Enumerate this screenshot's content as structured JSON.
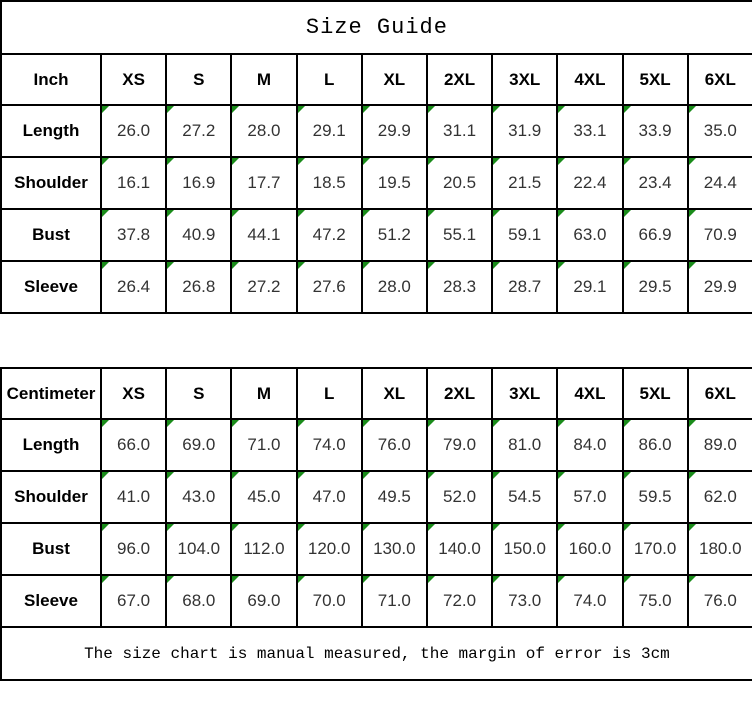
{
  "title": "Size Guide",
  "note": "The size chart is manual measured, the margin of error is 3cm",
  "colors": {
    "border": "#000000",
    "background": "#ffffff",
    "label_text": "#000000",
    "number_text": "#333333",
    "flag_triangle_green": "#1a8c1a"
  },
  "icons": {
    "cell_flag": "green-corner-triangle"
  },
  "tables": [
    {
      "unit_label": "Inch",
      "size_headers": [
        "XS",
        "S",
        "M",
        "L",
        "XL",
        "2XL",
        "3XL",
        "4XL",
        "5XL",
        "6XL"
      ],
      "rows": [
        {
          "label": "Length",
          "values": [
            "26.0",
            "27.2",
            "28.0",
            "29.1",
            "29.9",
            "31.1",
            "31.9",
            "33.1",
            "33.9",
            "35.0"
          ]
        },
        {
          "label": "Shoulder",
          "values": [
            "16.1",
            "16.9",
            "17.7",
            "18.5",
            "19.5",
            "20.5",
            "21.5",
            "22.4",
            "23.4",
            "24.4"
          ]
        },
        {
          "label": "Bust",
          "values": [
            "37.8",
            "40.9",
            "44.1",
            "47.2",
            "51.2",
            "55.1",
            "59.1",
            "63.0",
            "66.9",
            "70.9"
          ]
        },
        {
          "label": "Sleeve",
          "values": [
            "26.4",
            "26.8",
            "27.2",
            "27.6",
            "28.0",
            "28.3",
            "28.7",
            "29.1",
            "29.5",
            "29.9"
          ]
        }
      ]
    },
    {
      "unit_label": "Centimeter",
      "size_headers": [
        "XS",
        "S",
        "M",
        "L",
        "XL",
        "2XL",
        "3XL",
        "4XL",
        "5XL",
        "6XL"
      ],
      "rows": [
        {
          "label": "Length",
          "values": [
            "66.0",
            "69.0",
            "71.0",
            "74.0",
            "76.0",
            "79.0",
            "81.0",
            "84.0",
            "86.0",
            "89.0"
          ]
        },
        {
          "label": "Shoulder",
          "values": [
            "41.0",
            "43.0",
            "45.0",
            "47.0",
            "49.5",
            "52.0",
            "54.5",
            "57.0",
            "59.5",
            "62.0"
          ]
        },
        {
          "label": "Bust",
          "values": [
            "96.0",
            "104.0",
            "112.0",
            "120.0",
            "130.0",
            "140.0",
            "150.0",
            "160.0",
            "170.0",
            "180.0"
          ]
        },
        {
          "label": "Sleeve",
          "values": [
            "67.0",
            "68.0",
            "69.0",
            "70.0",
            "71.0",
            "72.0",
            "73.0",
            "74.0",
            "75.0",
            "76.0"
          ]
        }
      ]
    }
  ],
  "chart_data": [
    {
      "type": "table",
      "title": "Size Guide",
      "unit": "Inch",
      "columns": [
        "Inch",
        "XS",
        "S",
        "M",
        "L",
        "XL",
        "2XL",
        "3XL",
        "4XL",
        "5XL",
        "6XL"
      ],
      "rows": [
        [
          "Length",
          26.0,
          27.2,
          28.0,
          29.1,
          29.9,
          31.1,
          31.9,
          33.1,
          33.9,
          35.0
        ],
        [
          "Shoulder",
          16.1,
          16.9,
          17.7,
          18.5,
          19.5,
          20.5,
          21.5,
          22.4,
          23.4,
          24.4
        ],
        [
          "Bust",
          37.8,
          40.9,
          44.1,
          47.2,
          51.2,
          55.1,
          59.1,
          63.0,
          66.9,
          70.9
        ],
        [
          "Sleeve",
          26.4,
          26.8,
          27.2,
          27.6,
          28.0,
          28.3,
          28.7,
          29.1,
          29.5,
          29.9
        ]
      ]
    },
    {
      "type": "table",
      "title": "Size Guide",
      "unit": "Centimeter",
      "columns": [
        "Centimeter",
        "XS",
        "S",
        "M",
        "L",
        "XL",
        "2XL",
        "3XL",
        "4XL",
        "5XL",
        "6XL"
      ],
      "rows": [
        [
          "Length",
          66.0,
          69.0,
          71.0,
          74.0,
          76.0,
          79.0,
          81.0,
          84.0,
          86.0,
          89.0
        ],
        [
          "Shoulder",
          41.0,
          43.0,
          45.0,
          47.0,
          49.5,
          52.0,
          54.5,
          57.0,
          59.5,
          62.0
        ],
        [
          "Bust",
          96.0,
          104.0,
          112.0,
          120.0,
          130.0,
          140.0,
          150.0,
          160.0,
          170.0,
          180.0
        ],
        [
          "Sleeve",
          67.0,
          68.0,
          69.0,
          70.0,
          71.0,
          72.0,
          73.0,
          74.0,
          75.0,
          76.0
        ]
      ],
      "note": "The size chart is manual measured, the margin of error is 3cm"
    }
  ]
}
